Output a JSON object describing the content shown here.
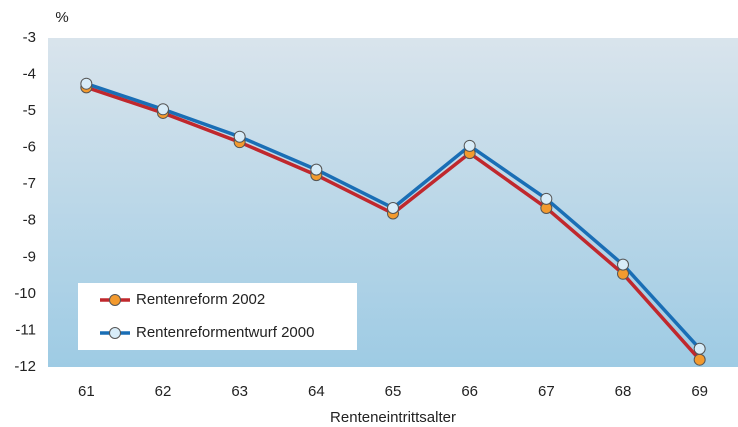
{
  "chart_data": {
    "type": "line",
    "y_label": "%",
    "x_label": "Renteneintrittsalter",
    "categories": [
      "61",
      "62",
      "63",
      "64",
      "65",
      "66",
      "67",
      "68",
      "69"
    ],
    "series": [
      {
        "name": "Rentenreform 2002",
        "color": "#c0282d",
        "marker_color": "#f39a2e",
        "values": [
          -4.35,
          -5.05,
          -5.85,
          -6.75,
          -7.8,
          -6.15,
          -7.65,
          -9.45,
          -11.8
        ]
      },
      {
        "name": "Rentenreformentwurf 2000",
        "color": "#1a6eb5",
        "marker_color": "#d8ecf8",
        "values": [
          -4.25,
          -4.95,
          -5.7,
          -6.6,
          -7.65,
          -5.95,
          -7.4,
          -9.2,
          -11.5
        ]
      }
    ],
    "ylim": [
      -12,
      -3
    ],
    "yticks": [
      -3,
      -4,
      -5,
      -6,
      -7,
      -8,
      -9,
      -10,
      -11,
      -12
    ],
    "legend": "lower left"
  }
}
